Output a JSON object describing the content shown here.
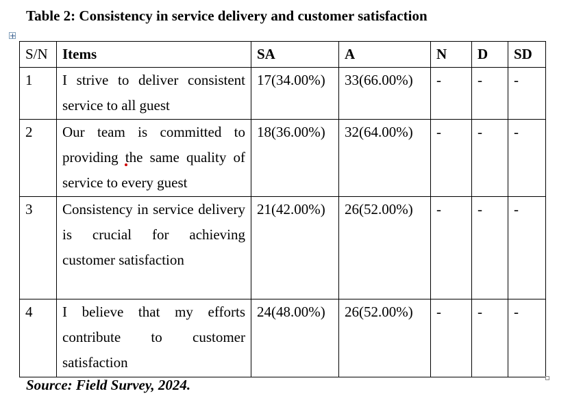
{
  "title": "Table 2: Consistency in service delivery and customer satisfaction",
  "table": {
    "headers": {
      "sn": "S/N",
      "items": "Items",
      "sa": "SA",
      "a": "A",
      "n": "N",
      "d": "D",
      "sd": "SD"
    },
    "rows": [
      {
        "sn": "1",
        "item": "I strive to deliver consistent service to all guest",
        "sa": "17(34.00%)",
        "a": "33(66.00%)",
        "n": "-",
        "d": "-",
        "sd": "-"
      },
      {
        "sn": "2",
        "item": "Our team is committed to providing the same quality of service to every guest",
        "sa": "18(36.00%)",
        "a": "32(64.00%)",
        "n": "-",
        "d": "-",
        "sd": "-"
      },
      {
        "sn": "3",
        "item": "Consistency in service delivery is crucial for achieving customer satisfaction",
        "sa": "21(42.00%)",
        "a": "26(52.00%)",
        "n": "-",
        "d": "-",
        "sd": "-"
      },
      {
        "sn": "4",
        "item": "I believe that my efforts contribute to customer satisfaction",
        "sa": "24(48.00%)",
        "a": "26(52.00%)",
        "n": "-",
        "d": "-",
        "sd": "-"
      }
    ]
  },
  "source": "Source: Field Survey, 2024."
}
